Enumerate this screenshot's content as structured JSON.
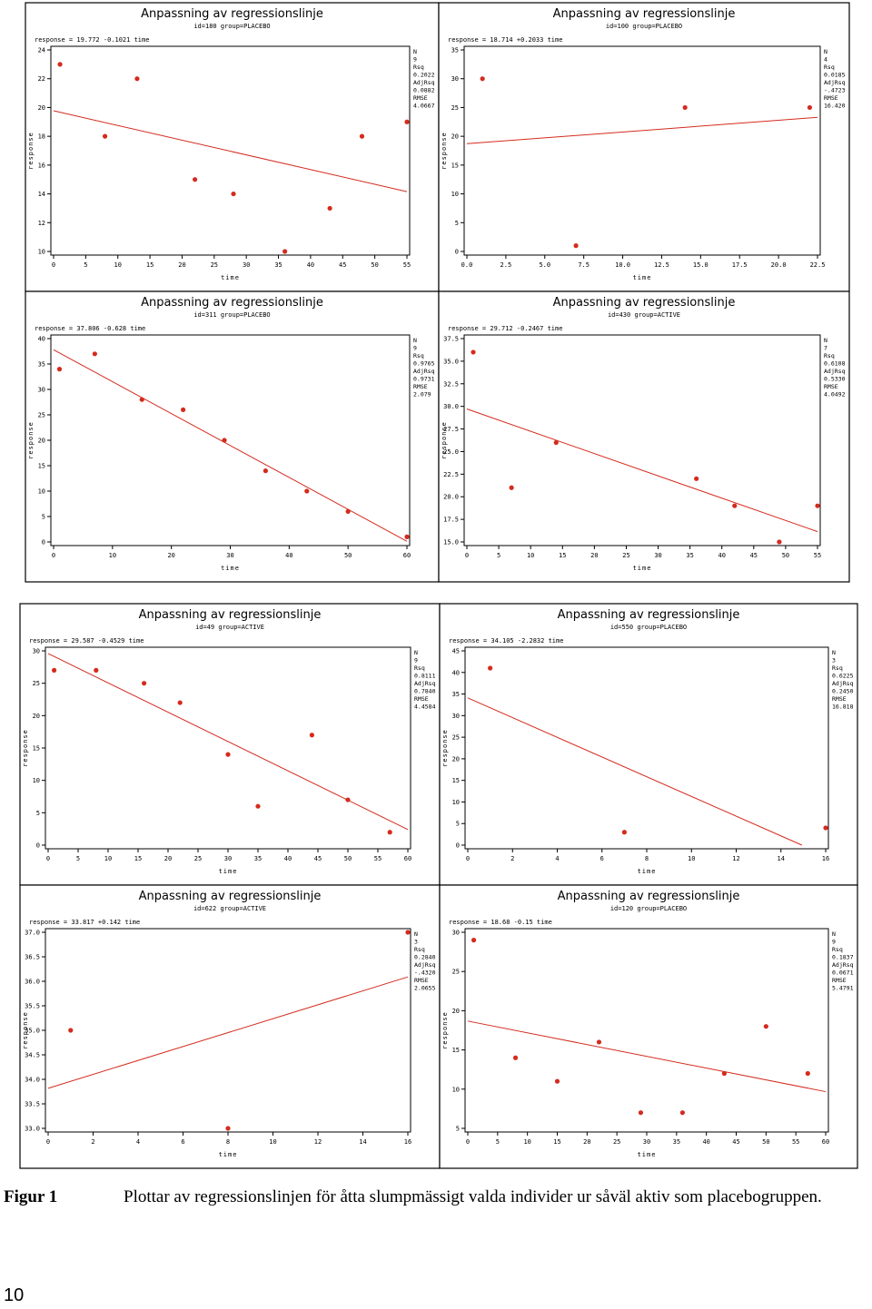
{
  "figure": {
    "label": "Figur 1",
    "caption": "Plottar av regressionslinjen för åtta slumpmässigt valda individer ur såväl aktiv som placebogruppen.",
    "page_number": "10"
  },
  "colors": {
    "points": "#d42b1e",
    "line": "#d42b1e",
    "frame": "#000000"
  },
  "chart_data": [
    {
      "type": "scatter",
      "title": "Anpassning av regressionslinje",
      "subtitle": "id=180 group=PLACEBO",
      "equation": "response = 19.772 -0.1021 time",
      "xlabel": "time",
      "ylabel": "response",
      "xlim": [
        0,
        55
      ],
      "ylim": [
        10,
        24
      ],
      "xticks": [
        "0",
        "5",
        "10",
        "15",
        "20",
        "25",
        "30",
        "35",
        "40",
        "45",
        "50",
        "55"
      ],
      "yticks": [
        "10",
        "12",
        "14",
        "16",
        "18",
        "20",
        "22",
        "24"
      ],
      "points": [
        [
          1,
          23
        ],
        [
          8,
          18
        ],
        [
          13,
          22
        ],
        [
          22,
          15
        ],
        [
          28,
          14
        ],
        [
          36,
          10
        ],
        [
          43,
          13
        ],
        [
          48,
          18
        ],
        [
          55,
          19
        ]
      ],
      "line": {
        "intercept": 19.772,
        "slope": -0.1021
      },
      "stats": [
        "N",
        "9",
        "Rsq",
        "0.2022",
        "AdjRsq",
        "0.0882",
        "RMSE",
        "4.0667"
      ]
    },
    {
      "type": "scatter",
      "title": "Anpassning av regressionslinje",
      "subtitle": "id=100 group=PLACEBO",
      "equation": "response = 18.714 +0.2033 time",
      "xlabel": "time",
      "ylabel": "response",
      "xlim": [
        0,
        22.5
      ],
      "ylim": [
        0,
        35
      ],
      "xticks": [
        "0.0",
        "2.5",
        "5.0",
        "7.5",
        "10.0",
        "12.5",
        "15.0",
        "17.5",
        "20.0",
        "22.5"
      ],
      "yticks": [
        "0",
        "5",
        "10",
        "15",
        "20",
        "25",
        "30",
        "35"
      ],
      "points": [
        [
          1,
          30
        ],
        [
          7,
          1
        ],
        [
          14,
          25
        ],
        [
          22,
          25
        ]
      ],
      "line": {
        "intercept": 18.714,
        "slope": 0.2033
      },
      "stats": [
        "N",
        "4",
        "Rsq",
        "0.0185",
        "AdjRsq",
        "-.4723",
        "RMSE",
        "16.420"
      ]
    },
    {
      "type": "scatter",
      "title": "Anpassning av regressionslinje",
      "subtitle": "id=311 group=PLACEBO",
      "equation": "response = 37.806 -0.628 time",
      "xlabel": "time",
      "ylabel": "response",
      "xlim": [
        0,
        60
      ],
      "ylim": [
        0,
        40
      ],
      "xticks": [
        "0",
        "10",
        "20",
        "30",
        "40",
        "50",
        "60"
      ],
      "yticks": [
        "0",
        "5",
        "10",
        "15",
        "20",
        "25",
        "30",
        "35",
        "40"
      ],
      "points": [
        [
          1,
          34
        ],
        [
          7,
          37
        ],
        [
          15,
          28
        ],
        [
          22,
          26
        ],
        [
          29,
          20
        ],
        [
          36,
          14
        ],
        [
          43,
          10
        ],
        [
          50,
          6
        ],
        [
          60,
          1
        ]
      ],
      "line": {
        "intercept": 37.806,
        "slope": -0.628
      },
      "stats": [
        "N",
        "9",
        "Rsq",
        "0.9765",
        "AdjRsq",
        "0.9731",
        "RMSE",
        "2.079"
      ]
    },
    {
      "type": "scatter",
      "title": "Anpassning av regressionslinje",
      "subtitle": "id=430 group=ACTIVE",
      "equation": "response = 29.712 -0.2467 time",
      "xlabel": "time",
      "ylabel": "response",
      "xlim": [
        0,
        55
      ],
      "ylim": [
        15,
        37.5
      ],
      "xticks": [
        "0",
        "5",
        "10",
        "15",
        "20",
        "25",
        "30",
        "35",
        "40",
        "45",
        "50",
        "55"
      ],
      "yticks": [
        "15.0",
        "17.5",
        "20.0",
        "22.5",
        "25.0",
        "27.5",
        "30.0",
        "32.5",
        "35.0",
        "37.5"
      ],
      "points": [
        [
          1,
          36
        ],
        [
          7,
          21
        ],
        [
          14,
          26
        ],
        [
          36,
          22
        ],
        [
          42,
          19
        ],
        [
          49,
          15
        ],
        [
          55,
          19
        ]
      ],
      "line": {
        "intercept": 29.712,
        "slope": -0.2467
      },
      "stats": [
        "N",
        "7",
        "Rsq",
        "0.6108",
        "AdjRsq",
        "0.5330",
        "RMSE",
        "4.0492"
      ]
    },
    {
      "type": "scatter",
      "title": "Anpassning av regressionslinje",
      "subtitle": "id=49 group=ACTIVE",
      "equation": "response = 29.587 -0.4529 time",
      "xlabel": "time",
      "ylabel": "response",
      "xlim": [
        0,
        60
      ],
      "ylim": [
        0,
        30
      ],
      "xticks": [
        "0",
        "5",
        "10",
        "15",
        "20",
        "25",
        "30",
        "35",
        "40",
        "45",
        "50",
        "55",
        "60"
      ],
      "yticks": [
        "0",
        "5",
        "10",
        "15",
        "20",
        "25",
        "30"
      ],
      "points": [
        [
          1,
          27
        ],
        [
          8,
          27
        ],
        [
          16,
          25
        ],
        [
          22,
          22
        ],
        [
          30,
          14
        ],
        [
          35,
          6
        ],
        [
          44,
          17
        ],
        [
          50,
          7
        ],
        [
          57,
          2
        ]
      ],
      "line": {
        "intercept": 29.587,
        "slope": -0.4529
      },
      "stats": [
        "N",
        "9",
        "Rsq",
        "0.8111",
        "AdjRsq",
        "0.7840",
        "RMSE",
        "4.4584"
      ]
    },
    {
      "type": "scatter",
      "title": "Anpassning av regressionslinje",
      "subtitle": "id=550 group=PLACEBO",
      "equation": "response = 34.105 -2.2832 time",
      "xlabel": "time",
      "ylabel": "response",
      "xlim": [
        0,
        16
      ],
      "ylim": [
        0,
        45
      ],
      "xticks": [
        "0",
        "2",
        "4",
        "6",
        "8",
        "10",
        "12",
        "14",
        "16"
      ],
      "yticks": [
        "0",
        "5",
        "10",
        "15",
        "20",
        "25",
        "30",
        "35",
        "40",
        "45"
      ],
      "points": [
        [
          1,
          41
        ],
        [
          7,
          3
        ],
        [
          16,
          4
        ]
      ],
      "line": {
        "intercept": 34.105,
        "slope": -2.2832
      },
      "stats": [
        "N",
        "3",
        "Rsq",
        "0.6225",
        "AdjRsq",
        "0.2450",
        "RMSE",
        "16.818"
      ]
    },
    {
      "type": "scatter",
      "title": "Anpassning av regressionslinje",
      "subtitle": "id=622 group=ACTIVE",
      "equation": "response = 33.817 +0.142 time",
      "xlabel": "time",
      "ylabel": "response",
      "xlim": [
        0,
        16
      ],
      "ylim": [
        33.0,
        37.0
      ],
      "xticks": [
        "0",
        "2",
        "4",
        "6",
        "8",
        "10",
        "12",
        "14",
        "16"
      ],
      "yticks": [
        "33.0",
        "33.5",
        "34.0",
        "34.5",
        "35.0",
        "35.5",
        "36.0",
        "36.5",
        "37.0"
      ],
      "points": [
        [
          1,
          35
        ],
        [
          8,
          33
        ],
        [
          16,
          37
        ]
      ],
      "line": {
        "intercept": 33.817,
        "slope": 0.142
      },
      "stats": [
        "N",
        "3",
        "Rsq",
        "0.2840",
        "AdjRsq",
        "-.4320",
        "RMSE",
        "2.0655"
      ]
    },
    {
      "type": "scatter",
      "title": "Anpassning av regressionslinje",
      "subtitle": "id=120 group=PLACEBO",
      "equation": "response = 18.68 -0.15 time",
      "xlabel": "time",
      "ylabel": "response",
      "xlim": [
        0,
        60
      ],
      "ylim": [
        5,
        30
      ],
      "xticks": [
        "0",
        "5",
        "10",
        "15",
        "20",
        "25",
        "30",
        "35",
        "40",
        "45",
        "50",
        "55",
        "60"
      ],
      "yticks": [
        "5",
        "10",
        "15",
        "20",
        "25",
        "30"
      ],
      "points": [
        [
          1,
          29
        ],
        [
          8,
          14
        ],
        [
          15,
          11
        ],
        [
          22,
          16
        ],
        [
          29,
          7
        ],
        [
          36,
          7
        ],
        [
          43,
          12
        ],
        [
          50,
          18
        ],
        [
          57,
          12
        ]
      ],
      "line": {
        "intercept": 18.68,
        "slope": -0.15
      },
      "stats": [
        "N",
        "9",
        "Rsq",
        "0.1837",
        "AdjRsq",
        "0.0671",
        "RMSE",
        "5.4791"
      ]
    }
  ]
}
